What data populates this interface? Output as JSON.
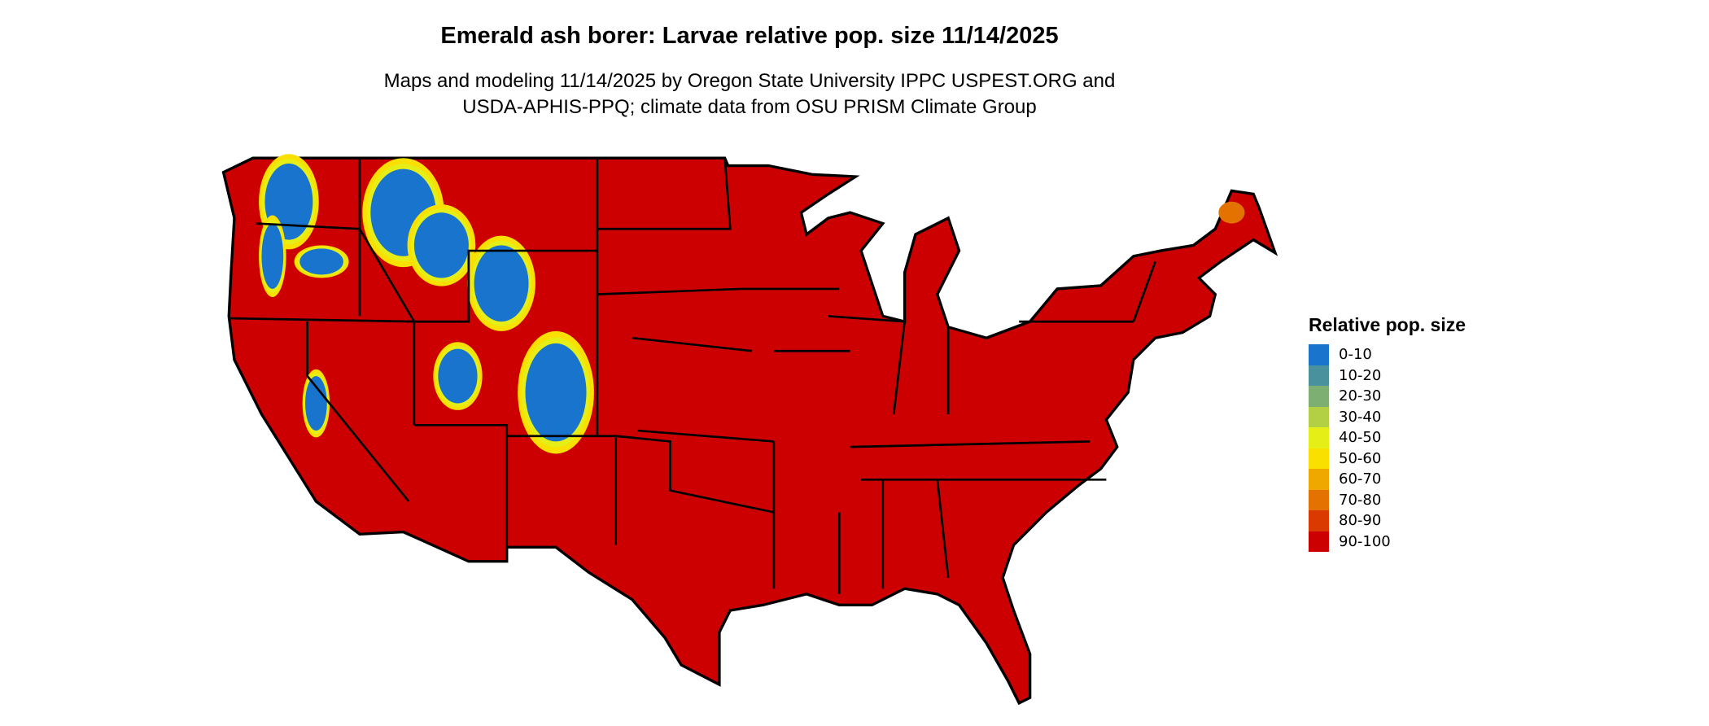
{
  "title": "Emerald ash borer: Larvae relative pop. size 11/14/2025",
  "subtitle_lines": [
    "Maps and modeling 11/14/2025 by Oregon State University IPPC USPEST.ORG and",
    "USDA-APHIS-PPQ; climate data from OSU PRISM Climate Group"
  ],
  "legend": {
    "title": "Relative pop. size",
    "items": [
      {
        "label": "0-10",
        "color": "#1874CD"
      },
      {
        "label": "10-20",
        "color": "#4A919E"
      },
      {
        "label": "20-30",
        "color": "#7EAF72"
      },
      {
        "label": "30-40",
        "color": "#B3D044"
      },
      {
        "label": "40-50",
        "color": "#E5EF17"
      },
      {
        "label": "50-60",
        "color": "#F9E000"
      },
      {
        "label": "60-70",
        "color": "#EFA800"
      },
      {
        "label": "70-80",
        "color": "#E37200"
      },
      {
        "label": "80-90",
        "color": "#DA3A00"
      },
      {
        "label": "90-100",
        "color": "#CC0000"
      }
    ]
  },
  "map": {
    "region": "Contiguous United States",
    "dominant_class": "90-100",
    "base_color": "#CC0000",
    "border_color": "#000000"
  }
}
